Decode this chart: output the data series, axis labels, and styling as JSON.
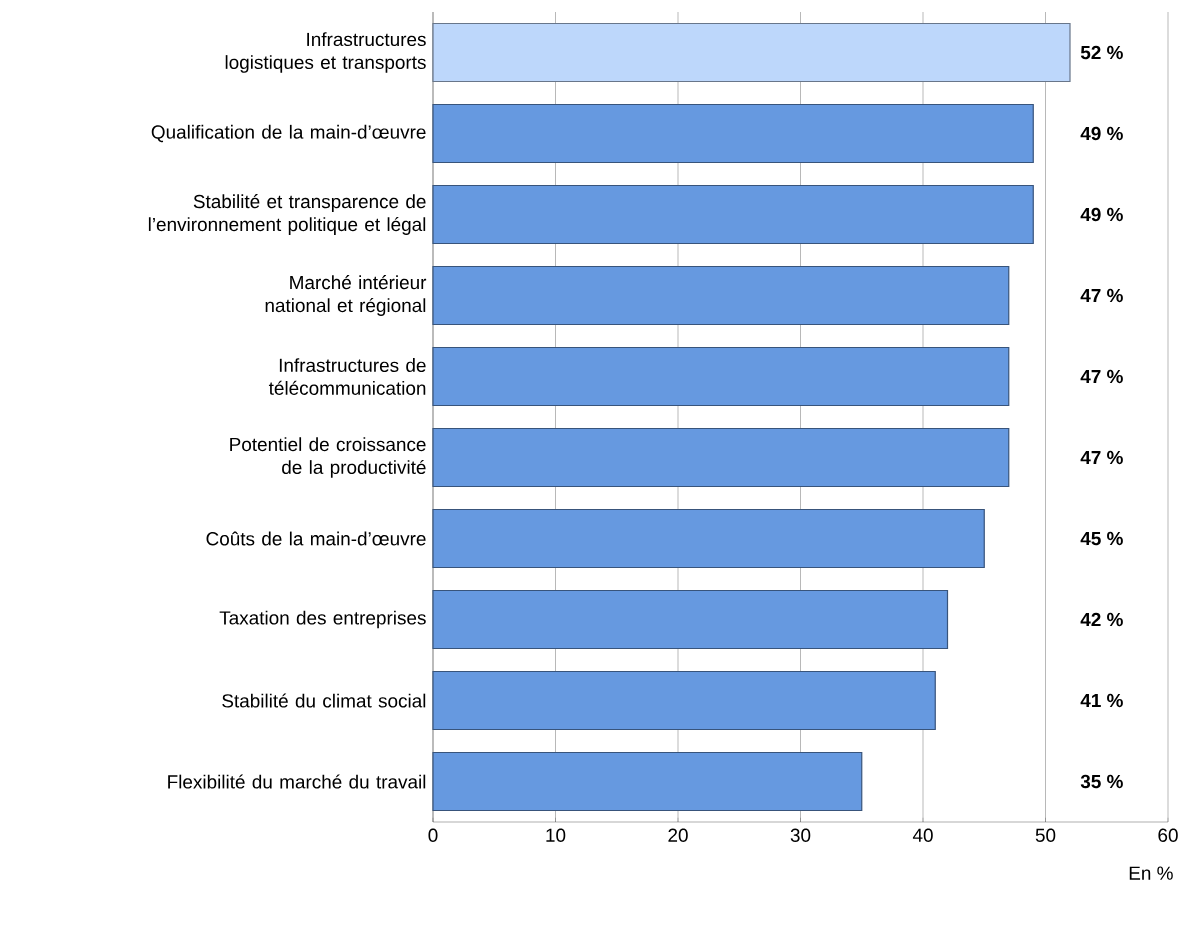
{
  "chart_data": {
    "type": "bar",
    "orientation": "horizontal",
    "xlabel": "En %",
    "categories": [
      "Infrastructures logistiques et transports",
      "Qualification de la main-d’œuvre",
      "Stabilité et transparence de l’environnement politique et légal",
      "Marché intérieur national et régional",
      "Infrastructures de télécommunication",
      "Potentiel de croissance de la productivité",
      "Coûts de la main-d’œuvre",
      "Taxation des entreprises",
      "Stabilité du climat social",
      "Flexibilité du marché du travail"
    ],
    "values": [
      52,
      49,
      49,
      47,
      47,
      47,
      45,
      42,
      41,
      35
    ],
    "value_labels": [
      "52 %",
      "49 %",
      "49 %",
      "47 %",
      "47 %",
      "47 %",
      "45 %",
      "42 %",
      "41 %",
      "35 %"
    ],
    "colors": [
      "#bdd7fb",
      "#6699e0",
      "#6699e0",
      "#6699e0",
      "#6699e0",
      "#6699e0",
      "#6699e0",
      "#6699e0",
      "#6699e0",
      "#6699e0"
    ],
    "xlim": [
      0,
      60
    ],
    "xticks": [
      0,
      10,
      20,
      30,
      40,
      50,
      60
    ],
    "grid": "x"
  }
}
